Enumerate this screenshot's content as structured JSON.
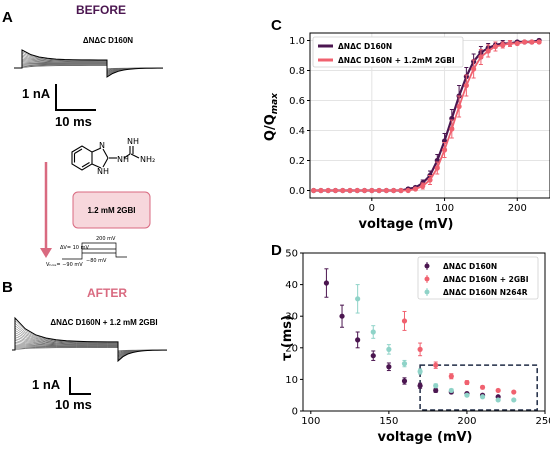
{
  "panels": {
    "A": {
      "label": "A",
      "title": "BEFORE",
      "construct": "ΔNΔC D160N",
      "scale_current": "1 nA",
      "scale_time": "10 ms"
    },
    "B": {
      "label": "B",
      "title": "AFTER",
      "construct": "ΔNΔC D160N + 1.2 mM 2GBI",
      "scale_current": "1 nA",
      "scale_time": "10 ms"
    },
    "C": {
      "label": "C"
    },
    "D": {
      "label": "D"
    }
  },
  "middle": {
    "drug_box": "1.2 mM 2GBI",
    "molecule_labels": {
      "N": "N",
      "H": "H",
      "NH": "NH",
      "NH2": "NH₂"
    },
    "protocol": {
      "step_top": "200 mV",
      "step": "ΔV= 10 mV",
      "hold": "Vₕₒₗₔ= −90 mV",
      "post": "−80 mV"
    },
    "colors": {
      "arrow": "#d96a80",
      "box_fill": "#f7d7dc",
      "box_stroke": "#d96a80",
      "title_before": "#4b1650",
      "title_after": "#d96a80"
    }
  },
  "chart_data": [
    {
      "type": "scatter",
      "panel": "C",
      "xlabel": "voltage (mV)",
      "ylabel": "Q/Q",
      "ylabel_sub": "max",
      "xlim": [
        -85,
        245
      ],
      "ylim": [
        -0.05,
        1.05
      ],
      "xticks": [
        "0",
        "100",
        "200"
      ],
      "xtick_values": [
        0,
        100,
        200
      ],
      "yticks": [
        "0.0",
        "0.2",
        "0.4",
        "0.6",
        "0.8",
        "1.0"
      ],
      "ytick_values": [
        0,
        0.2,
        0.4,
        0.6,
        0.8,
        1.0
      ],
      "legend_position": "top-left",
      "series": [
        {
          "name": "ΔNΔC D160N",
          "color": "#4b1650",
          "x": [
            -80,
            -70,
            -60,
            -50,
            -40,
            -30,
            -20,
            -10,
            0,
            10,
            20,
            30,
            40,
            50,
            60,
            70,
            80,
            90,
            100,
            110,
            120,
            130,
            140,
            150,
            160,
            170,
            180,
            190,
            200,
            210,
            220,
            230
          ],
          "y": [
            0.0,
            0.0,
            0.0,
            0.0,
            0.0,
            0.0,
            0.0,
            0.0,
            0.0,
            0.0,
            0.0,
            0.0,
            0.0,
            0.01,
            0.02,
            0.05,
            0.1,
            0.2,
            0.33,
            0.48,
            0.63,
            0.76,
            0.86,
            0.92,
            0.95,
            0.97,
            0.98,
            0.98,
            0.99,
            0.99,
            0.99,
            1.0
          ],
          "err": [
            0,
            0,
            0,
            0,
            0,
            0,
            0,
            0,
            0,
            0,
            0,
            0,
            0,
            0.01,
            0.01,
            0.02,
            0.03,
            0.04,
            0.05,
            0.06,
            0.07,
            0.06,
            0.05,
            0.04,
            0.03,
            0.02,
            0.02,
            0.01,
            0.01,
            0.01,
            0.01,
            0.01
          ]
        },
        {
          "name": "ΔNΔC D160N + 1.2mM 2GBI",
          "color": "#f0616f",
          "x": [
            -80,
            -70,
            -60,
            -50,
            -40,
            -30,
            -20,
            -10,
            0,
            10,
            20,
            30,
            40,
            50,
            60,
            70,
            80,
            90,
            100,
            110,
            120,
            130,
            140,
            150,
            160,
            170,
            180,
            190,
            200,
            210,
            220,
            230
          ],
          "y": [
            0.0,
            0.0,
            0.0,
            0.0,
            0.0,
            0.0,
            0.0,
            0.0,
            0.0,
            0.0,
            0.0,
            0.0,
            0.0,
            0.0,
            0.01,
            0.03,
            0.07,
            0.15,
            0.27,
            0.41,
            0.56,
            0.7,
            0.81,
            0.89,
            0.93,
            0.96,
            0.97,
            0.98,
            0.98,
            0.99,
            0.99,
            0.99
          ],
          "err": [
            0,
            0,
            0,
            0,
            0,
            0,
            0,
            0,
            0,
            0,
            0,
            0,
            0,
            0,
            0.01,
            0.02,
            0.03,
            0.04,
            0.05,
            0.06,
            0.07,
            0.07,
            0.06,
            0.05,
            0.04,
            0.03,
            0.02,
            0.02,
            0.01,
            0.01,
            0.01,
            0.01
          ]
        }
      ]
    },
    {
      "type": "scatter",
      "panel": "D",
      "xlabel": "voltage (mV)",
      "ylabel": "τ (ms)",
      "xlim": [
        95,
        250
      ],
      "ylim": [
        0,
        50
      ],
      "xticks": [
        "100",
        "150",
        "200",
        "250"
      ],
      "xtick_values": [
        100,
        150,
        200,
        250
      ],
      "yticks": [
        "0",
        "10",
        "20",
        "30",
        "40",
        "50"
      ],
      "ytick_values": [
        0,
        10,
        20,
        30,
        40,
        50
      ],
      "legend_position": "top-right",
      "highlight_box": {
        "x": [
          170,
          245
        ],
        "y": [
          0,
          14.5
        ],
        "style": "dashed"
      },
      "series": [
        {
          "name": "ΔNΔC D160N",
          "color": "#4b1650",
          "x": [
            110,
            120,
            130,
            140,
            150,
            160,
            170,
            180,
            190,
            200,
            210,
            220
          ],
          "y": [
            40.5,
            30.0,
            22.5,
            17.5,
            14.0,
            9.5,
            8.0,
            6.5,
            6.0,
            5.5,
            5.0,
            4.5
          ],
          "err": [
            4.5,
            3.5,
            2.5,
            1.5,
            1.2,
            1.0,
            0.8,
            0.6,
            0.5,
            0.4,
            0.4,
            0.3
          ]
        },
        {
          "name": "ΔNΔC D160N + 2GBI",
          "color": "#f0616f",
          "x": [
            160,
            170,
            180,
            190,
            200,
            210,
            220,
            230
          ],
          "y": [
            28.5,
            19.5,
            14.5,
            11.0,
            9.0,
            7.5,
            6.5,
            6.0
          ],
          "err": [
            3.0,
            2.0,
            1.0,
            0.8,
            0.6,
            0.5,
            0.4,
            0.3
          ]
        },
        {
          "name": "ΔNΔC D160N N264R",
          "color": "#8fd3c8",
          "x": [
            130,
            140,
            150,
            160,
            170,
            180,
            190,
            200,
            210,
            220,
            230
          ],
          "y": [
            35.5,
            25.0,
            19.5,
            15.0,
            12.5,
            8.0,
            6.5,
            5.0,
            4.5,
            3.5,
            3.5
          ],
          "err": [
            4.5,
            2.0,
            1.5,
            1.0,
            0.8,
            0.6,
            0.5,
            0.4,
            0.4,
            0.3,
            0.3
          ]
        }
      ]
    }
  ]
}
